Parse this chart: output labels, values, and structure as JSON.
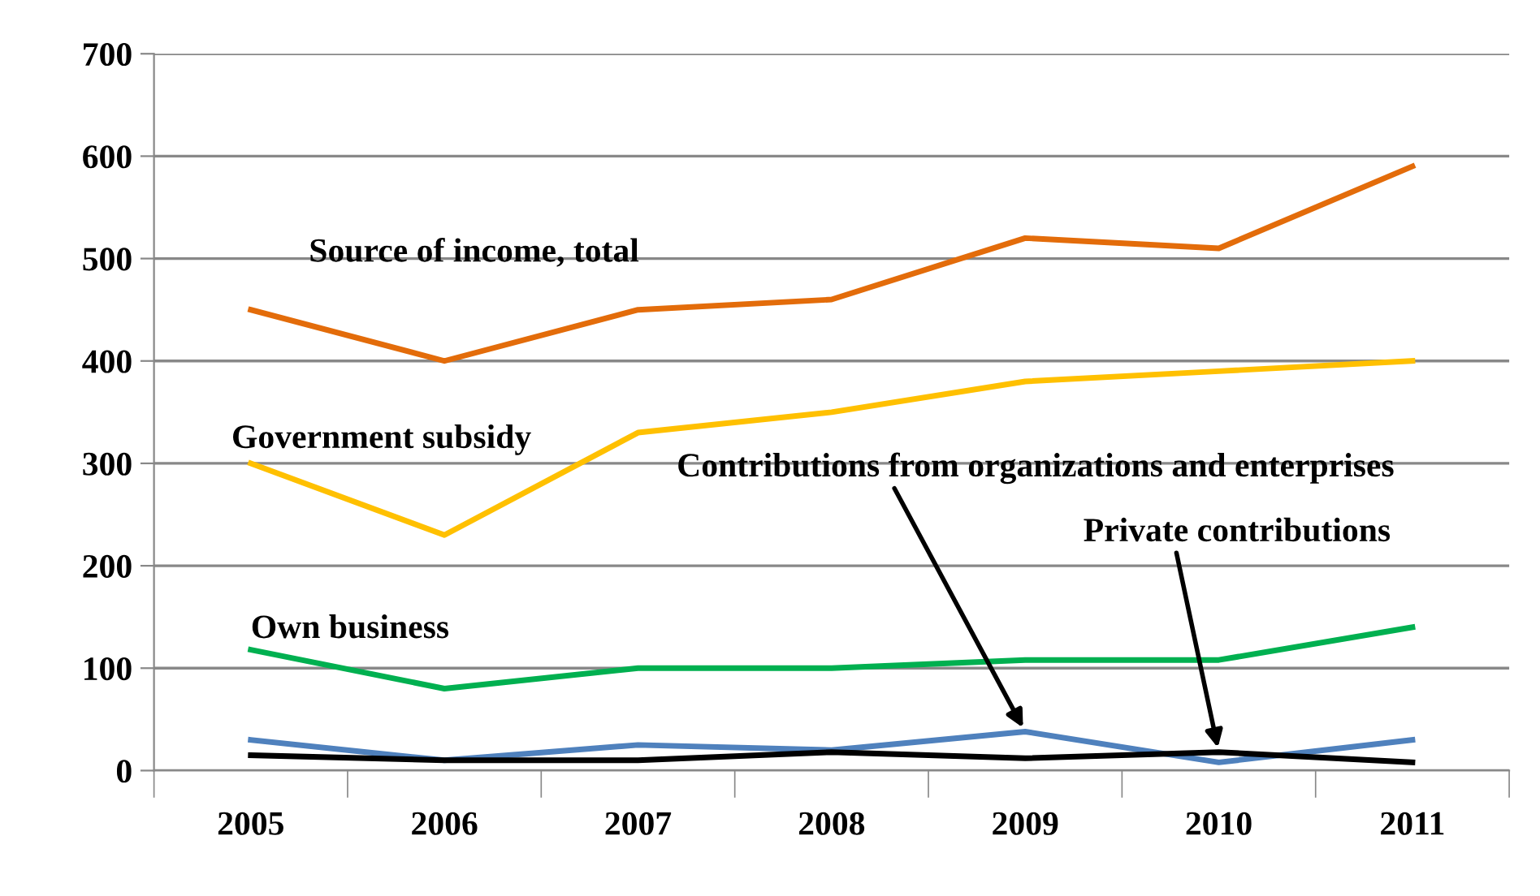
{
  "chart_data": {
    "type": "line",
    "categories": [
      "2005",
      "2006",
      "2007",
      "2008",
      "2009",
      "2010",
      "2011"
    ],
    "series": [
      {
        "name": "Source of income, total",
        "color": "#e36c0a",
        "values": [
          450,
          400,
          450,
          460,
          520,
          510,
          590
        ]
      },
      {
        "name": "Government subsidy",
        "color": "#ffc000",
        "values": [
          300,
          230,
          330,
          350,
          380,
          390,
          400
        ]
      },
      {
        "name": "Own business",
        "color": "#00b050",
        "values": [
          118,
          80,
          100,
          100,
          108,
          108,
          140
        ]
      },
      {
        "name": "Contributions from organizations and enterprises",
        "color": "#4f81bd",
        "values": [
          30,
          10,
          25,
          20,
          38,
          8,
          30
        ]
      },
      {
        "name": "Private contributions",
        "color": "#000000",
        "values": [
          15,
          10,
          10,
          18,
          12,
          18,
          8
        ]
      }
    ],
    "ylim": [
      0,
      700
    ],
    "yticks": [
      0,
      100,
      200,
      300,
      400,
      500,
      600,
      700
    ],
    "grid": "y",
    "legend": false,
    "marker": "none",
    "line_style": "solid"
  }
}
